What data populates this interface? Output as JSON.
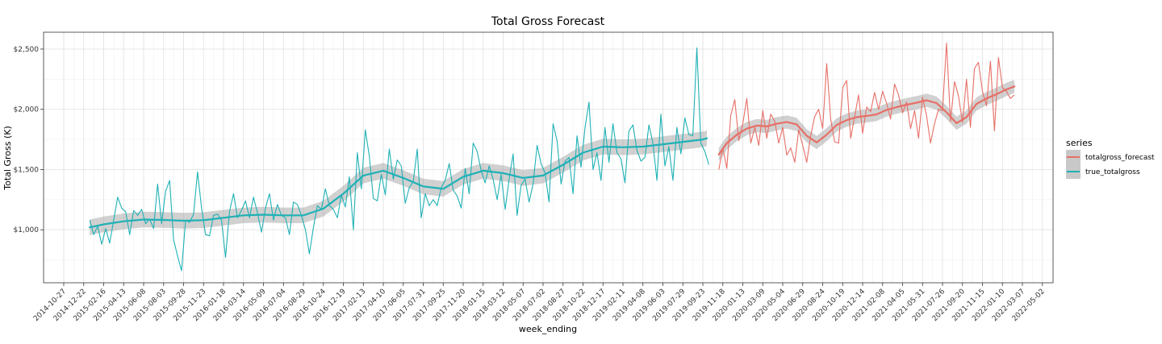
{
  "chart_data": {
    "type": "line",
    "title": "Total Gross Forecast",
    "xlabel": "week_ending",
    "ylabel": "Total Gross (K)",
    "ylim": [
      560,
      2640
    ],
    "yticks": [
      1000,
      1500,
      2000,
      2500
    ],
    "ytick_labels": [
      "$1,000",
      "$1,500",
      "$2,000",
      "$2,500"
    ],
    "x_start": "2014-10-27",
    "x_end": "2022-05-02",
    "xtick_labels": [
      "2014-10-27",
      "2014-12-22",
      "2015-02-16",
      "2015-04-13",
      "2015-06-08",
      "2015-08-03",
      "2015-09-28",
      "2015-11-23",
      "2016-01-18",
      "2016-03-14",
      "2016-05-09",
      "2016-07-04",
      "2016-08-29",
      "2016-10-24",
      "2016-12-19",
      "2017-02-13",
      "2017-04-10",
      "2017-06-05",
      "2017-07-31",
      "2017-09-25",
      "2017-11-20",
      "2018-01-15",
      "2018-03-12",
      "2018-05-07",
      "2018-07-02",
      "2018-08-27",
      "2018-10-22",
      "2018-12-17",
      "2019-02-11",
      "2019-04-08",
      "2019-06-03",
      "2019-07-29",
      "2019-09-23",
      "2019-11-18",
      "2020-01-13",
      "2020-03-09",
      "2020-05-04",
      "2020-06-29",
      "2020-08-24",
      "2020-10-19",
      "2020-12-14",
      "2021-02-08",
      "2021-04-05",
      "2021-05-31",
      "2021-07-26",
      "2021-09-20",
      "2021-11-15",
      "2022-01-10",
      "2022-03-07",
      "2022-05-02"
    ],
    "legend": {
      "title": "series",
      "position": "right"
    },
    "series": [
      {
        "name": "totalgross_forecast",
        "color": "#E76F67",
        "smooth_x_index": [
          32.8,
          33.2,
          33.7,
          34.2,
          34.7,
          35.2,
          35.7,
          36.2,
          36.7,
          37.2,
          37.7,
          38.2,
          38.7,
          39.2,
          39.7,
          40.2,
          40.7,
          41.2,
          41.7,
          42.2,
          42.7,
          43.2,
          43.7,
          44.2,
          44.7,
          45.2,
          45.7,
          46.2,
          46.7,
          47.2,
          47.6
        ],
        "smooth_values": [
          1625,
          1720,
          1790,
          1840,
          1865,
          1858,
          1880,
          1895,
          1875,
          1780,
          1725,
          1790,
          1870,
          1910,
          1935,
          1945,
          1958,
          1995,
          2018,
          2038,
          2055,
          2075,
          2052,
          1975,
          1885,
          1935,
          2045,
          2090,
          2125,
          2165,
          2190
        ],
        "band_halfwidth": 55,
        "raw_x_index": [
          32.8,
          33.0,
          33.2,
          33.4,
          33.6,
          33.8,
          34.0,
          34.2,
          34.4,
          34.6,
          34.8,
          35.0,
          35.2,
          35.4,
          35.6,
          35.8,
          36.0,
          36.2,
          36.4,
          36.6,
          36.8,
          37.0,
          37.2,
          37.4,
          37.6,
          37.8,
          38.0,
          38.2,
          38.4,
          38.6,
          38.8,
          39.0,
          39.2,
          39.4,
          39.6,
          39.8,
          40.0,
          40.2,
          40.4,
          40.6,
          40.8,
          41.0,
          41.2,
          41.4,
          41.6,
          41.8,
          42.0,
          42.2,
          42.4,
          42.6,
          42.8,
          43.0,
          43.2,
          43.4,
          43.6,
          43.8,
          44.0,
          44.2,
          44.4,
          44.6,
          44.8,
          45.0,
          45.2,
          45.4,
          45.6,
          45.8,
          46.0,
          46.2,
          46.4,
          46.6,
          46.8,
          47.0,
          47.2,
          47.4,
          47.6
        ],
        "raw_values": [
          1500,
          1680,
          1510,
          1950,
          2080,
          1740,
          1880,
          2090,
          1720,
          1850,
          1700,
          1990,
          1760,
          1960,
          1900,
          1720,
          1850,
          1620,
          1680,
          1560,
          1830,
          1700,
          1560,
          1780,
          1940,
          2000,
          1840,
          2380,
          1920,
          1730,
          1720,
          2180,
          2240,
          1760,
          1940,
          2120,
          1800,
          2020,
          1980,
          2140,
          2000,
          2150,
          2050,
          1920,
          2210,
          2120,
          1970,
          2060,
          1840,
          1990,
          1760,
          2100,
          1950,
          1720,
          1880,
          2000,
          1990,
          2550,
          1900,
          2230,
          2110,
          1890,
          2250,
          1850,
          2340,
          2390,
          2150,
          2030,
          2400,
          1820,
          2430,
          2180,
          2150,
          2090,
          2120
        ]
      },
      {
        "name": "true_totalgross",
        "color": "#1FB1B6",
        "smooth_x_index": [
          1.3,
          2,
          3,
          4,
          5,
          6,
          7,
          8,
          9,
          10,
          11,
          12,
          13,
          14,
          15,
          16,
          17,
          18,
          19,
          20,
          21,
          22,
          23,
          24,
          25,
          26,
          27,
          28,
          29,
          30,
          31,
          32,
          32.2
        ],
        "smooth_values": [
          1020,
          1045,
          1070,
          1085,
          1082,
          1075,
          1080,
          1100,
          1120,
          1125,
          1120,
          1120,
          1175,
          1300,
          1450,
          1490,
          1430,
          1360,
          1340,
          1440,
          1490,
          1470,
          1430,
          1450,
          1540,
          1640,
          1690,
          1685,
          1690,
          1710,
          1730,
          1750,
          1760
        ],
        "band_halfwidth": 65,
        "raw_x_index": [
          1.3,
          1.5,
          1.7,
          1.9,
          2.1,
          2.3,
          2.5,
          2.7,
          2.9,
          3.1,
          3.3,
          3.5,
          3.7,
          3.9,
          4.1,
          4.3,
          4.5,
          4.7,
          4.9,
          5.1,
          5.3,
          5.5,
          5.7,
          5.9,
          6.1,
          6.3,
          6.5,
          6.7,
          6.9,
          7.1,
          7.3,
          7.5,
          7.7,
          7.9,
          8.1,
          8.3,
          8.5,
          8.7,
          8.9,
          9.1,
          9.3,
          9.5,
          9.7,
          9.9,
          10.1,
          10.3,
          10.5,
          10.7,
          10.9,
          11.1,
          11.3,
          11.5,
          11.7,
          11.9,
          12.1,
          12.3,
          12.5,
          12.7,
          12.9,
          13.1,
          13.3,
          13.5,
          13.7,
          13.9,
          14.1,
          14.3,
          14.5,
          14.7,
          14.9,
          15.1,
          15.3,
          15.5,
          15.7,
          15.9,
          16.1,
          16.3,
          16.5,
          16.7,
          16.9,
          17.1,
          17.3,
          17.5,
          17.7,
          17.9,
          18.1,
          18.3,
          18.5,
          18.7,
          18.9,
          19.1,
          19.3,
          19.5,
          19.7,
          19.9,
          20.1,
          20.3,
          20.5,
          20.7,
          20.9,
          21.1,
          21.3,
          21.5,
          21.7,
          21.9,
          22.1,
          22.3,
          22.5,
          22.7,
          22.9,
          23.1,
          23.3,
          23.5,
          23.7,
          23.9,
          24.1,
          24.3,
          24.5,
          24.7,
          24.9,
          25.1,
          25.3,
          25.5,
          25.7,
          25.9,
          26.1,
          26.3,
          26.5,
          26.7,
          26.9,
          27.1,
          27.3,
          27.5,
          27.7,
          27.9,
          28.1,
          28.3,
          28.5,
          28.7,
          28.9,
          29.1,
          29.3,
          29.5,
          29.7,
          29.9,
          30.1,
          30.3,
          30.5,
          30.7,
          30.9,
          31.1,
          31.3,
          31.5,
          31.7,
          31.9,
          32.1,
          32.3
        ],
        "raw_values": [
          1080,
          960,
          1030,
          880,
          1010,
          890,
          1080,
          1270,
          1180,
          1150,
          960,
          1160,
          1120,
          1170,
          1050,
          1090,
          1010,
          1380,
          1050,
          1320,
          1410,
          920,
          780,
          660,
          1080,
          1060,
          1130,
          1480,
          1180,
          960,
          950,
          1120,
          1130,
          1080,
          770,
          1150,
          1300,
          1100,
          1160,
          1240,
          1100,
          1270,
          1140,
          980,
          1180,
          1300,
          1080,
          1210,
          1120,
          1100,
          960,
          1230,
          1210,
          1120,
          1000,
          800,
          1020,
          1200,
          1170,
          1340,
          1200,
          1170,
          1100,
          1290,
          1190,
          1440,
          1000,
          1640,
          1340,
          1830,
          1610,
          1260,
          1240,
          1460,
          1290,
          1670,
          1420,
          1580,
          1530,
          1220,
          1350,
          1400,
          1670,
          1100,
          1300,
          1200,
          1250,
          1200,
          1350,
          1410,
          1550,
          1330,
          1280,
          1180,
          1510,
          1300,
          1720,
          1650,
          1490,
          1390,
          1530,
          1420,
          1250,
          1460,
          1170,
          1420,
          1630,
          1120,
          1370,
          1420,
          1230,
          1380,
          1700,
          1550,
          1470,
          1230,
          1880,
          1740,
          1380,
          1570,
          1600,
          1300,
          1780,
          1520,
          1850,
          2060,
          1500,
          1640,
          1410,
          1850,
          1560,
          1880,
          1640,
          1590,
          1390,
          1820,
          1870,
          1660,
          1570,
          1600,
          1870,
          1720,
          1410,
          1960,
          1530,
          1690,
          1410,
          1850,
          1630,
          1930,
          1790,
          1780,
          2510,
          1720,
          1650,
          1540
        ]
      }
    ]
  }
}
